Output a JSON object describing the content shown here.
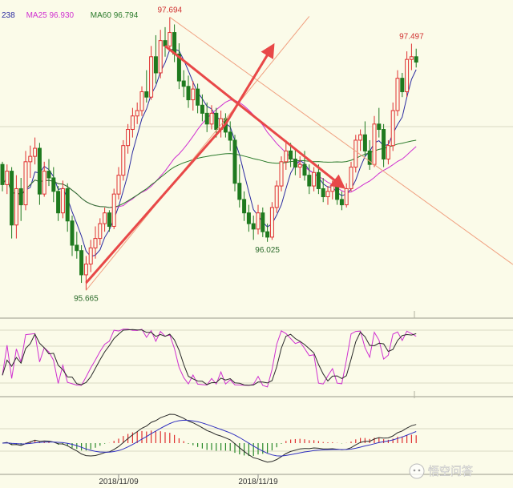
{
  "chart_data": {
    "type": "candlestick",
    "main_panel": {
      "legend": [
        {
          "label": "238",
          "color": "#2a2aa0"
        },
        {
          "label": "MA25 96.930",
          "color": "#d030d0"
        },
        {
          "label": "MA60 96.794",
          "color": "#2a7a2a"
        }
      ],
      "ylim": [
        95.5,
        97.75
      ],
      "annotations": [
        {
          "text": "97.694",
          "index": 36,
          "value": 97.694,
          "color": "#d03030",
          "pos": "above"
        },
        {
          "text": "95.665",
          "index": 18,
          "value": 95.665,
          "color": "#2a6a2a",
          "pos": "below"
        },
        {
          "text": "96.025",
          "index": 57,
          "value": 96.025,
          "color": "#2a6a2a",
          "pos": "below"
        },
        {
          "text": "97.497",
          "index": 88,
          "value": 97.497,
          "color": "#d03030",
          "pos": "above"
        }
      ]
    },
    "x_tick_labels": [
      {
        "text": "2018/11/09",
        "index": 25
      },
      {
        "text": "2018/11/19",
        "index": 55
      }
    ],
    "candles_ohlc": [
      [
        96.6,
        96.62,
        96.4,
        96.45
      ],
      [
        96.45,
        96.6,
        96.38,
        96.55
      ],
      [
        96.55,
        96.58,
        96.05,
        96.15
      ],
      [
        96.15,
        96.52,
        96.05,
        96.42
      ],
      [
        96.42,
        96.5,
        96.18,
        96.3
      ],
      [
        96.3,
        96.7,
        96.26,
        96.62
      ],
      [
        96.62,
        96.74,
        96.5,
        96.66
      ],
      [
        96.66,
        96.8,
        96.6,
        96.72
      ],
      [
        96.72,
        96.76,
        96.3,
        96.38
      ],
      [
        96.38,
        96.62,
        96.36,
        96.55
      ],
      [
        96.55,
        96.64,
        96.44,
        96.5
      ],
      [
        96.5,
        96.58,
        96.32,
        96.4
      ],
      [
        96.4,
        96.44,
        96.18,
        96.24
      ],
      [
        96.24,
        96.48,
        96.2,
        96.42
      ],
      [
        96.42,
        96.46,
        96.1,
        96.18
      ],
      [
        96.18,
        96.22,
        95.92,
        96.0
      ],
      [
        96.0,
        96.1,
        95.9,
        95.96
      ],
      [
        95.96,
        96.0,
        95.72,
        95.78
      ],
      [
        95.78,
        95.92,
        95.665,
        95.86
      ],
      [
        95.86,
        96.04,
        95.8,
        95.98
      ],
      [
        95.98,
        96.14,
        95.9,
        96.05
      ],
      [
        96.05,
        96.2,
        96.0,
        96.16
      ],
      [
        96.16,
        96.28,
        96.1,
        96.24
      ],
      [
        96.24,
        96.26,
        96.1,
        96.14
      ],
      [
        96.14,
        96.42,
        96.12,
        96.38
      ],
      [
        96.38,
        96.58,
        96.34,
        96.52
      ],
      [
        96.52,
        96.78,
        96.48,
        96.74
      ],
      [
        96.74,
        96.9,
        96.68,
        96.86
      ],
      [
        96.86,
        97.02,
        96.8,
        96.96
      ],
      [
        96.96,
        97.06,
        96.9,
        97.0
      ],
      [
        97.0,
        97.18,
        96.96,
        97.14
      ],
      [
        97.14,
        97.3,
        97.06,
        97.1
      ],
      [
        97.1,
        97.48,
        97.08,
        97.4
      ],
      [
        97.4,
        97.56,
        97.2,
        97.28
      ],
      [
        97.28,
        97.6,
        97.24,
        97.52
      ],
      [
        97.52,
        97.62,
        97.4,
        97.48
      ],
      [
        97.48,
        97.694,
        97.44,
        97.58
      ],
      [
        97.58,
        97.64,
        97.36,
        97.42
      ],
      [
        97.42,
        97.5,
        97.16,
        97.22
      ],
      [
        97.22,
        97.3,
        97.1,
        97.18
      ],
      [
        97.18,
        97.26,
        97.02,
        97.08
      ],
      [
        97.08,
        97.22,
        97.0,
        97.16
      ],
      [
        97.16,
        97.2,
        96.98,
        97.04
      ],
      [
        97.04,
        97.12,
        96.92,
        96.98
      ],
      [
        96.98,
        97.06,
        96.84,
        96.9
      ],
      [
        96.9,
        97.04,
        96.86,
        96.98
      ],
      [
        96.98,
        97.02,
        96.8,
        96.86
      ],
      [
        96.86,
        97.0,
        96.8,
        96.94
      ],
      [
        96.94,
        96.98,
        96.8,
        96.84
      ],
      [
        96.84,
        96.92,
        96.7,
        96.78
      ],
      [
        96.78,
        96.82,
        96.4,
        96.46
      ],
      [
        96.46,
        96.6,
        96.28,
        96.34
      ],
      [
        96.34,
        96.4,
        96.18,
        96.24
      ],
      [
        96.24,
        96.3,
        96.1,
        96.16
      ],
      [
        96.16,
        96.22,
        96.04,
        96.12
      ],
      [
        96.12,
        96.3,
        96.08,
        96.24
      ],
      [
        96.24,
        96.28,
        96.06,
        96.1
      ],
      [
        96.1,
        96.16,
        96.025,
        96.06
      ],
      [
        96.06,
        96.32,
        96.04,
        96.28
      ],
      [
        96.28,
        96.48,
        96.24,
        96.44
      ],
      [
        96.44,
        96.66,
        96.4,
        96.62
      ],
      [
        96.62,
        96.78,
        96.56,
        96.7
      ],
      [
        96.7,
        96.76,
        96.58,
        96.64
      ],
      [
        96.64,
        96.72,
        96.52,
        96.58
      ],
      [
        96.58,
        96.66,
        96.5,
        96.6
      ],
      [
        96.6,
        96.7,
        96.48,
        96.52
      ],
      [
        96.52,
        96.6,
        96.38,
        96.44
      ],
      [
        96.44,
        96.58,
        96.4,
        96.54
      ],
      [
        96.54,
        96.6,
        96.38,
        96.42
      ],
      [
        96.42,
        96.5,
        96.32,
        96.36
      ],
      [
        96.36,
        96.44,
        96.3,
        96.4
      ],
      [
        96.4,
        96.48,
        96.34,
        96.44
      ],
      [
        96.44,
        96.5,
        96.3,
        96.34
      ],
      [
        96.34,
        96.4,
        96.26,
        96.3
      ],
      [
        96.3,
        96.46,
        96.28,
        96.42
      ],
      [
        96.42,
        96.62,
        96.4,
        96.58
      ],
      [
        96.58,
        96.82,
        96.54,
        96.78
      ],
      [
        96.78,
        96.86,
        96.7,
        96.82
      ],
      [
        96.82,
        96.92,
        96.66,
        96.7
      ],
      [
        96.7,
        96.78,
        96.56,
        96.6
      ],
      [
        96.6,
        96.96,
        96.58,
        96.9
      ],
      [
        96.9,
        97.02,
        96.8,
        96.86
      ],
      [
        96.86,
        96.9,
        96.58,
        96.64
      ],
      [
        96.64,
        96.78,
        96.6,
        96.74
      ],
      [
        96.74,
        97.06,
        96.7,
        97.0
      ],
      [
        97.0,
        97.3,
        96.96,
        97.24
      ],
      [
        97.24,
        97.28,
        97.1,
        97.14
      ],
      [
        97.14,
        97.44,
        97.1,
        97.38
      ],
      [
        97.38,
        97.497,
        97.3,
        97.4
      ],
      [
        97.4,
        97.46,
        97.32,
        97.36
      ]
    ],
    "ma_lines": [
      {
        "name": "238",
        "color": "#2a2aa0",
        "period": 5
      },
      {
        "name": "MA25",
        "color": "#d030d0",
        "period": 25
      },
      {
        "name": "MA60",
        "color": "#2a7a2a",
        "period": 60
      }
    ],
    "trendlines": [
      {
        "from": [
          18,
          95.665
        ],
        "to": [
          66,
          97.7
        ],
        "color": "#f0a080",
        "style": "thin"
      },
      {
        "from": [
          36,
          97.694
        ],
        "to": [
          92,
          96.3
        ],
        "color": "#f0a080",
        "style": "thin"
      },
      {
        "from": [
          18,
          95.72
        ],
        "to": [
          48,
          96.9
        ],
        "color": "#e84848",
        "style": "bold"
      },
      {
        "from": [
          48,
          96.9
        ],
        "to": [
          58,
          97.47
        ],
        "color": "#e84848",
        "style": "arrow"
      },
      {
        "from": [
          35,
          97.48
        ],
        "to": [
          73,
          96.44
        ],
        "color": "#e84848",
        "style": "arrow"
      }
    ],
    "oscillator_panel": {
      "type": "stochastic",
      "lines": [
        {
          "color": "#d030d0"
        },
        {
          "color": "#2a2a2a"
        }
      ]
    },
    "macd_panel": {
      "type": "macd",
      "histogram_colors": {
        "positive": "#e03030",
        "negative": "#2a8a2a"
      },
      "lines": [
        {
          "color": "#2a2a2a"
        },
        {
          "color": "#3030c0"
        }
      ]
    }
  },
  "watermark": {
    "text": "悟空问答",
    "icon": "chat-bubble-icon"
  }
}
